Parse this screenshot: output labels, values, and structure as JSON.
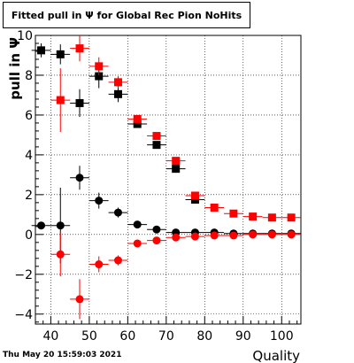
{
  "title": "Fitted pull in  Ψ  for Global Rec Pion NoHits",
  "timestamp": "Thu May 20 15:59:03 2021",
  "chart_data": {
    "type": "scatter",
    "xlabel": "Quality",
    "ylabel": "pull in  Ψ",
    "xlim": [
      36,
      105
    ],
    "ylim": [
      -4.5,
      10
    ],
    "x_ticks": [
      40,
      50,
      60,
      70,
      80,
      90,
      100
    ],
    "y_ticks": [
      -4,
      -2,
      0,
      2,
      4,
      6,
      8,
      10
    ],
    "grid": true,
    "colors": {
      "black": "#000000",
      "red": "#ff0000"
    },
    "series": [
      {
        "color": "#000000",
        "marker": "square",
        "points": [
          {
            "x": 37.5,
            "y": 9.25,
            "xerr": 2.5,
            "yerr": 0.35
          },
          {
            "x": 42.5,
            "y": 9.05,
            "xerr": 2.5,
            "yerr": 0.5
          },
          {
            "x": 47.5,
            "y": 6.6,
            "xerr": 2.5,
            "yerr": 0.7
          },
          {
            "x": 52.5,
            "y": 7.95,
            "xerr": 2.5,
            "yerr": 0.6
          },
          {
            "x": 57.5,
            "y": 7.05,
            "xerr": 2.5,
            "yerr": 0.4
          },
          {
            "x": 62.5,
            "y": 5.55,
            "xerr": 2.5,
            "yerr": 0.15
          },
          {
            "x": 67.5,
            "y": 4.5,
            "xerr": 2.5,
            "yerr": 0.1
          },
          {
            "x": 72.5,
            "y": 3.3,
            "xerr": 2.5,
            "yerr": 0.1
          },
          {
            "x": 77.5,
            "y": 1.75,
            "xerr": 2.5,
            "yerr": 0.05
          }
        ]
      },
      {
        "color": "#ff0000",
        "marker": "square",
        "points": [
          {
            "x": 42.5,
            "y": 6.75,
            "xerr": 2.5,
            "yerr": 1.6
          },
          {
            "x": 47.5,
            "y": 9.35,
            "xerr": 2.5,
            "yerr": 0.65
          },
          {
            "x": 52.5,
            "y": 8.45,
            "xerr": 2.5,
            "yerr": 0.45
          },
          {
            "x": 57.5,
            "y": 7.65,
            "xerr": 2.5,
            "yerr": 0.3
          },
          {
            "x": 62.5,
            "y": 5.8,
            "xerr": 2.5,
            "yerr": 0.12
          },
          {
            "x": 67.5,
            "y": 4.95,
            "xerr": 2.5,
            "yerr": 0.08
          },
          {
            "x": 72.5,
            "y": 3.7,
            "xerr": 2.5,
            "yerr": 0.08
          },
          {
            "x": 77.5,
            "y": 1.95,
            "xerr": 2.5,
            "yerr": 0.05
          },
          {
            "x": 82.5,
            "y": 1.35,
            "xerr": 2.5,
            "yerr": 0.05
          },
          {
            "x": 87.5,
            "y": 1.05,
            "xerr": 2.5,
            "yerr": 0.05
          },
          {
            "x": 92.5,
            "y": 0.9,
            "xerr": 2.5,
            "yerr": 0.05
          },
          {
            "x": 97.5,
            "y": 0.85,
            "xerr": 2.5,
            "yerr": 0.05
          },
          {
            "x": 102.5,
            "y": 0.85,
            "xerr": 2.5,
            "yerr": 0.05
          }
        ]
      },
      {
        "color": "#000000",
        "marker": "circle",
        "points": [
          {
            "x": 37.5,
            "y": 0.45,
            "xerr": 2.5,
            "yerr": 0.0
          },
          {
            "x": 42.5,
            "y": 0.45,
            "xerr": 2.5,
            "yerr": 1.9
          },
          {
            "x": 47.5,
            "y": 2.85,
            "xerr": 2.5,
            "yerr": 0.6
          },
          {
            "x": 52.5,
            "y": 1.7,
            "xerr": 2.5,
            "yerr": 0.4
          },
          {
            "x": 57.5,
            "y": 1.1,
            "xerr": 2.5,
            "yerr": 0.25
          },
          {
            "x": 62.5,
            "y": 0.5,
            "xerr": 2.5,
            "yerr": 0.12
          },
          {
            "x": 67.5,
            "y": 0.25,
            "xerr": 2.5,
            "yerr": 0.08
          },
          {
            "x": 72.5,
            "y": 0.1,
            "xerr": 2.5,
            "yerr": 0.05
          },
          {
            "x": 77.5,
            "y": 0.1,
            "xerr": 2.5,
            "yerr": 0.05
          },
          {
            "x": 82.5,
            "y": 0.1,
            "xerr": 2.5,
            "yerr": 0.05
          },
          {
            "x": 87.5,
            "y": 0.05,
            "xerr": 2.5,
            "yerr": 0.05
          },
          {
            "x": 92.5,
            "y": 0.05,
            "xerr": 2.5,
            "yerr": 0.05
          },
          {
            "x": 97.5,
            "y": 0.05,
            "xerr": 2.5,
            "yerr": 0.05
          },
          {
            "x": 102.5,
            "y": 0.05,
            "xerr": 2.5,
            "yerr": 0.05
          }
        ]
      },
      {
        "color": "#ff0000",
        "marker": "circle",
        "points": [
          {
            "x": 42.5,
            "y": -1.0,
            "xerr": 2.5,
            "yerr": 1.1
          },
          {
            "x": 47.5,
            "y": -3.25,
            "xerr": 2.5,
            "yerr": 1.0
          },
          {
            "x": 52.5,
            "y": -1.5,
            "xerr": 2.5,
            "yerr": 0.4
          },
          {
            "x": 57.5,
            "y": -1.3,
            "xerr": 2.5,
            "yerr": 0.25
          },
          {
            "x": 62.5,
            "y": -0.45,
            "xerr": 2.5,
            "yerr": 0.12
          },
          {
            "x": 67.5,
            "y": -0.3,
            "xerr": 2.5,
            "yerr": 0.08
          },
          {
            "x": 72.5,
            "y": -0.15,
            "xerr": 2.5,
            "yerr": 0.05
          },
          {
            "x": 77.5,
            "y": -0.1,
            "xerr": 2.5,
            "yerr": 0.05
          },
          {
            "x": 82.5,
            "y": -0.05,
            "xerr": 2.5,
            "yerr": 0.05
          },
          {
            "x": 87.5,
            "y": -0.05,
            "xerr": 2.5,
            "yerr": 0.05
          },
          {
            "x": 92.5,
            "y": 0.0,
            "xerr": 2.5,
            "yerr": 0.05
          },
          {
            "x": 97.5,
            "y": 0.0,
            "xerr": 2.5,
            "yerr": 0.05
          },
          {
            "x": 102.5,
            "y": 0.0,
            "xerr": 2.5,
            "yerr": 0.05
          }
        ]
      }
    ]
  }
}
